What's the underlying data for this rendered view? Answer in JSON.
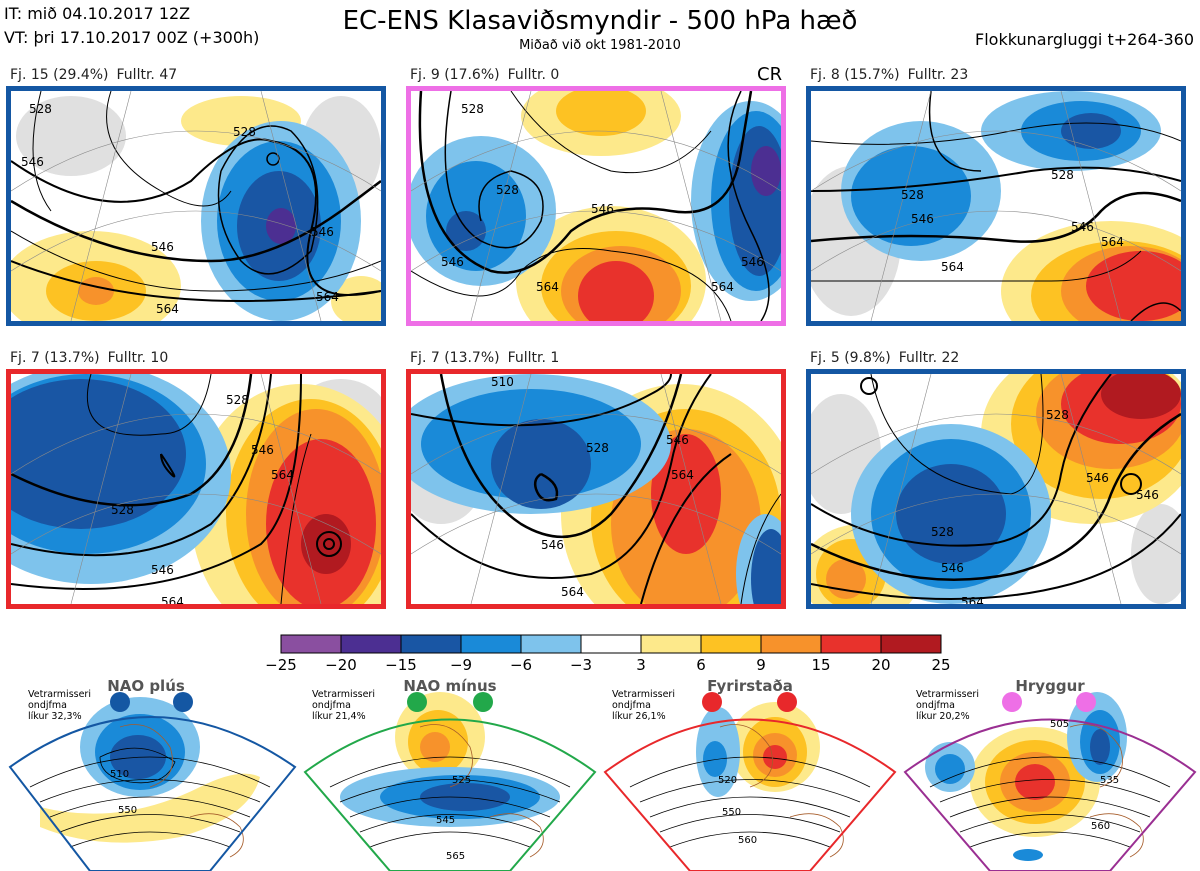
{
  "header": {
    "it_line": "IT: mið 04.10.2017 12Z",
    "vt_line": "VT: þri 17.10.2017 00Z  (+300h)",
    "title": "EC-ENS Klasaviðsmyndir - 500 hPa hæð",
    "subtitle": "Miðað við okt 1981-2010",
    "window": "Flokkunargluggi t+264-360"
  },
  "cr_label": "CR",
  "panels": [
    {
      "cluster": "Fj. 15 (29.4%)",
      "rep": "Fulltr. 47",
      "border": "#1457a3"
    },
    {
      "cluster": "Fj. 9 (17.6%)",
      "rep": "Fulltr. 0",
      "border": "#ee6fe6"
    },
    {
      "cluster": "Fj. 8 (15.7%)",
      "rep": "Fulltr. 23",
      "border": "#1457a3"
    },
    {
      "cluster": "Fj. 7 (13.7%)",
      "rep": "Fulltr. 10",
      "border": "#e8282b"
    },
    {
      "cluster": "Fj. 7 (13.7%)",
      "rep": "Fulltr. 1",
      "border": "#e8282b"
    },
    {
      "cluster": "Fj. 5 (9.8%)",
      "rep": "Fulltr. 22",
      "border": "#1457a3"
    }
  ],
  "contour_labels": {
    "p0": [
      "528",
      "546",
      "528",
      "546",
      "546",
      "564",
      "564"
    ],
    "p1": [
      "528",
      "528",
      "546",
      "546",
      "546",
      "564",
      "564"
    ],
    "p2": [
      "528",
      "546",
      "528",
      "546",
      "564",
      "564"
    ],
    "p3": [
      "528",
      "528",
      "546",
      "546",
      "564",
      "564"
    ],
    "p4": [
      "510",
      "528",
      "546",
      "546",
      "564",
      "564"
    ],
    "p5": [
      "528",
      "528",
      "546",
      "546",
      "546",
      "564"
    ]
  },
  "colorbar": {
    "colors": [
      "#8a4fa0",
      "#4c2f92",
      "#1956a4",
      "#1a8ad8",
      "#7ec3ec",
      "#ffffff",
      "#fde98b",
      "#fdc223",
      "#f7922b",
      "#e8322c",
      "#b11a20"
    ],
    "labels": [
      "−25",
      "−20",
      "−15",
      "−9",
      "−6",
      "−3",
      "3",
      "6",
      "9",
      "15",
      "20",
      "25"
    ]
  },
  "regimes": [
    {
      "name": "NAO plús",
      "note": [
        "Vetrarmisseri",
        "ondjfma",
        "líkur 32,3%"
      ],
      "color": "#1457a3",
      "contours": [
        "510",
        "550"
      ]
    },
    {
      "name": "NAO mínus",
      "note": [
        "Vetrarmisseri",
        "ondjfma",
        "líkur 21,4%"
      ],
      "color": "#22a84a",
      "contours": [
        "525",
        "545",
        "565"
      ]
    },
    {
      "name": "Fyrirstaða",
      "note": [
        "Vetrarmisseri",
        "ondjfma",
        "líkur 26,1%"
      ],
      "color": "#e8282b",
      "contours": [
        "520",
        "550",
        "560"
      ]
    },
    {
      "name": "Hryggur",
      "note": [
        "Vetrarmisseri",
        "ondjfma",
        "líkur 20,2%"
      ],
      "color": "#ee6fe6",
      "contours": [
        "505",
        "535",
        "560"
      ]
    }
  ]
}
